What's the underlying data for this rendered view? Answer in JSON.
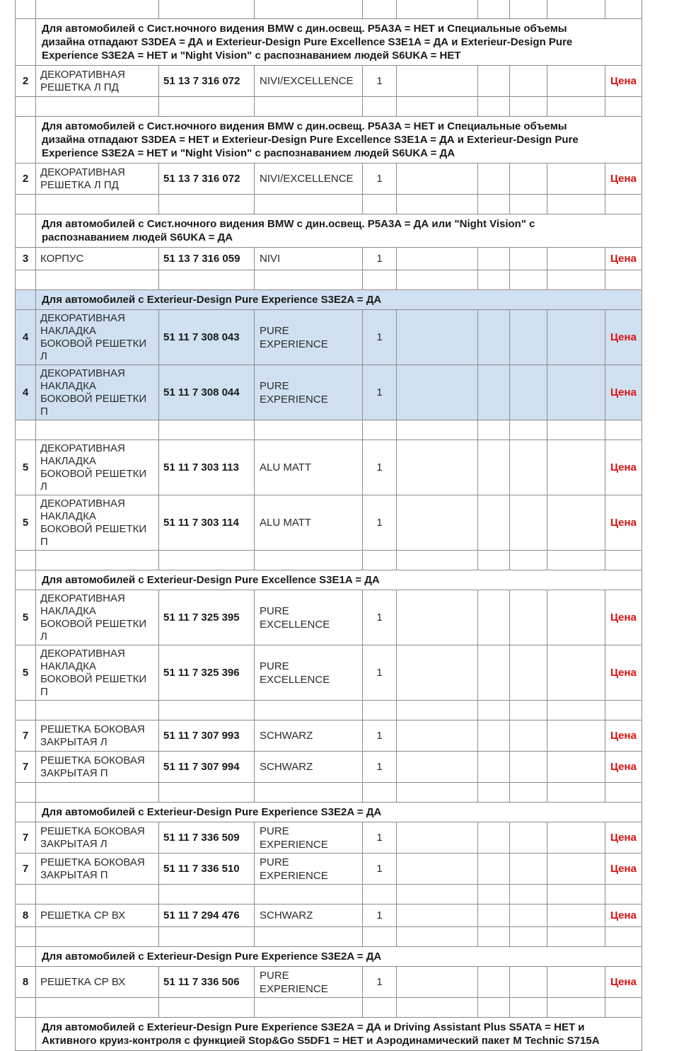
{
  "table": {
    "border_color": "#8c8c8c",
    "highlight_color": "#cfe1f0",
    "price_color": "#e01010",
    "rows": [
      {
        "type": "empty"
      },
      {
        "type": "note",
        "text": "Для автомобилей с Сист.ночного видения BMW с дин.освещ. P5A3A = НЕТ и Специальные объемы\nдизайна отпадают S3DEA = ДА и Exterieur-Design Pure Excellence S3E1A = ДА и Exterieur-Design Pure\nExperience S3E2A = НЕТ и \"Night Vision\" с распознаванием людей S6UKA = НЕТ"
      },
      {
        "type": "data",
        "item": "2",
        "name": "ДЕКОРАТИВНАЯ\nРЕШЕТКА Л ПД",
        "part": "51 13 7 316 072",
        "variant": "NIVI/EXCELLENCE",
        "qty": "1",
        "price": "Цена"
      },
      {
        "type": "empty"
      },
      {
        "type": "note",
        "text": "Для автомобилей с Сист.ночного видения BMW с дин.освещ. P5A3A = НЕТ и Специальные объемы\nдизайна отпадают S3DEA = НЕТ и Exterieur-Design Pure Excellence S3E1A = ДА и Exterieur-Design Pure\nExperience S3E2A = НЕТ и \"Night Vision\" с распознаванием людей S6UKA = ДА"
      },
      {
        "type": "data",
        "item": "2",
        "name": "ДЕКОРАТИВНАЯ\nРЕШЕТКА Л ПД",
        "part": "51 13 7 316 072",
        "variant": "NIVI/EXCELLENCE",
        "qty": "1",
        "price": "Цена"
      },
      {
        "type": "empty"
      },
      {
        "type": "note",
        "text": "Для автомобилей с Сист.ночного видения BMW с дин.освещ. P5A3A = ДА или \"Night Vision\" с\nраспознаванием людей S6UKA = ДА"
      },
      {
        "type": "data",
        "item": "3",
        "name": "КОРПУС",
        "part": "51 13 7 316 059",
        "variant": "NIVI",
        "qty": "1",
        "price": "Цена"
      },
      {
        "type": "empty"
      },
      {
        "type": "note",
        "highlight": true,
        "text": "Для автомобилей с Exterieur-Design Pure Experience S3E2A = ДА"
      },
      {
        "type": "data",
        "highlight": true,
        "item": "4",
        "name": "ДЕКОРАТИВНАЯ\nНАКЛАДКА\nБОКОВОЙ РЕШЕТКИ\nЛ",
        "part": "51 11 7 308 043",
        "variant": "PURE\nEXPERIENCE",
        "qty": "1",
        "price": "Цена"
      },
      {
        "type": "data",
        "highlight": true,
        "item": "4",
        "name": "ДЕКОРАТИВНАЯ\nНАКЛАДКА\nБОКОВОЙ РЕШЕТКИ\nП",
        "part": "51 11 7 308 044",
        "variant": "PURE\nEXPERIENCE",
        "qty": "1",
        "price": "Цена"
      },
      {
        "type": "empty"
      },
      {
        "type": "data",
        "item": "5",
        "name": "ДЕКОРАТИВНАЯ\nНАКЛАДКА\nБОКОВОЙ РЕШЕТКИ\nЛ",
        "part": "51 11 7 303 113",
        "variant": "ALU MATT",
        "qty": "1",
        "price": "Цена"
      },
      {
        "type": "data",
        "item": "5",
        "name": "ДЕКОРАТИВНАЯ\nНАКЛАДКА\nБОКОВОЙ РЕШЕТКИ\nП",
        "part": "51 11 7 303 114",
        "variant": "ALU MATT",
        "qty": "1",
        "price": "Цена"
      },
      {
        "type": "empty"
      },
      {
        "type": "note",
        "text": "Для автомобилей с Exterieur-Design Pure Excellence S3E1A = ДА"
      },
      {
        "type": "data",
        "item": "5",
        "name": "ДЕКОРАТИВНАЯ\nНАКЛАДКА\nБОКОВОЙ РЕШЕТКИ\nЛ",
        "part": "51 11 7 325 395",
        "variant": "PURE\nEXCELLENCE",
        "qty": "1",
        "price": "Цена"
      },
      {
        "type": "data",
        "item": "5",
        "name": "ДЕКОРАТИВНАЯ\nНАКЛАДКА\nБОКОВОЙ РЕШЕТКИ\nП",
        "part": "51 11 7 325 396",
        "variant": "PURE\nEXCELLENCE",
        "qty": "1",
        "price": "Цена"
      },
      {
        "type": "empty"
      },
      {
        "type": "data",
        "item": "7",
        "name": "РЕШЕТКА БОКОВАЯ\nЗАКРЫТАЯ Л",
        "part": "51 11 7 307 993",
        "variant": "SCHWARZ",
        "qty": "1",
        "price": "Цена"
      },
      {
        "type": "data",
        "item": "7",
        "name": "РЕШЕТКА БОКОВАЯ\nЗАКРЫТАЯ П",
        "part": "51 11 7 307 994",
        "variant": "SCHWARZ",
        "qty": "1",
        "price": "Цена"
      },
      {
        "type": "empty"
      },
      {
        "type": "note",
        "text": "Для автомобилей с Exterieur-Design Pure Experience S3E2A = ДА"
      },
      {
        "type": "data",
        "item": "7",
        "name": "РЕШЕТКА БОКОВАЯ\nЗАКРЫТАЯ Л",
        "part": "51 11 7 336 509",
        "variant": "PURE\nEXPERIENCE",
        "qty": "1",
        "price": "Цена"
      },
      {
        "type": "data",
        "item": "7",
        "name": "РЕШЕТКА БОКОВАЯ\nЗАКРЫТАЯ П",
        "part": "51 11 7 336 510",
        "variant": "PURE\nEXPERIENCE",
        "qty": "1",
        "price": "Цена"
      },
      {
        "type": "empty"
      },
      {
        "type": "data",
        "item": "8",
        "name": "РЕШЕТКА СР ВХ",
        "part": "51 11 7 294 476",
        "variant": "SCHWARZ",
        "qty": "1",
        "price": "Цена"
      },
      {
        "type": "empty"
      },
      {
        "type": "note",
        "text": "Для автомобилей с Exterieur-Design Pure Experience S3E2A = ДА"
      },
      {
        "type": "data",
        "item": "8",
        "name": "РЕШЕТКА СР ВХ",
        "part": "51 11 7 336 506",
        "variant": "PURE\nEXPERIENCE",
        "qty": "1",
        "price": "Цена"
      },
      {
        "type": "empty"
      },
      {
        "type": "note",
        "text": "Для автомобилей с Exterieur-Design Pure Experience S3E2A = ДА и Driving Assistant Plus S5ATA = НЕТ и\nАктивного круиз-контроля с функцией Stop&Go S5DF1 = НЕТ и Аэродинамический пакет M Technic S715A"
      }
    ]
  }
}
